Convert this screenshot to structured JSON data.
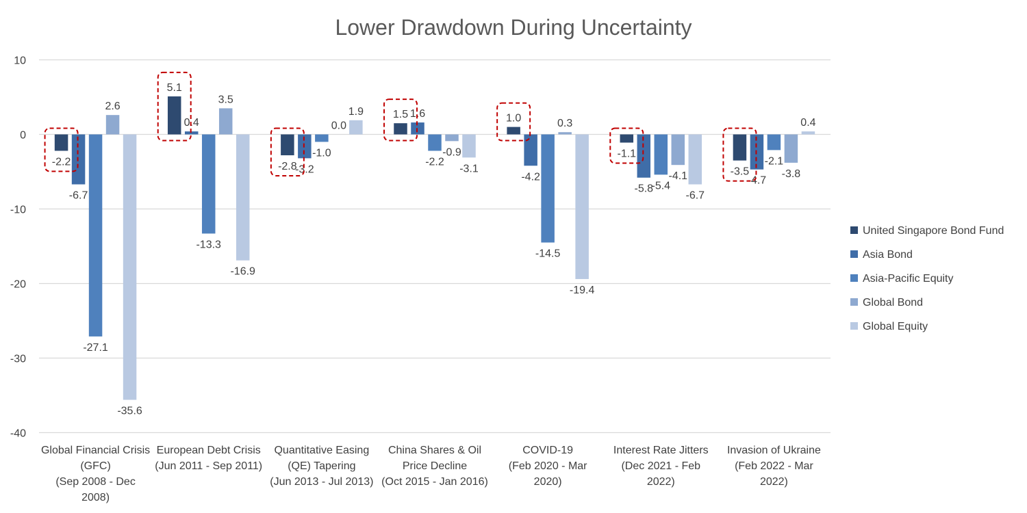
{
  "chart_data": {
    "type": "bar",
    "title": "Lower Drawdown During Uncertainty",
    "xlabel": "",
    "ylabel": "",
    "ylim": [
      -40,
      10
    ],
    "yticks": [
      10,
      0,
      -10,
      -20,
      -30,
      -40
    ],
    "grid": true,
    "legend_position": "right",
    "categories": [
      [
        "Global Financial Crisis",
        "(GFC)",
        "(Sep 2008 - Dec",
        "2008)"
      ],
      [
        "European Debt Crisis",
        "(Jun 2011 - Sep 2011)"
      ],
      [
        "Quantitative Easing",
        "(QE) Tapering",
        "(Jun 2013 - Jul 2013)"
      ],
      [
        "China Shares & Oil",
        "Price Decline",
        "(Oct 2015 - Jan 2016)"
      ],
      [
        "COVID-19",
        "(Feb 2020 - Mar",
        "2020)"
      ],
      [
        "Interest Rate Jitters",
        "(Dec 2021 - Feb",
        "2022)"
      ],
      [
        "Invasion of Ukraine",
        "(Feb 2022 - Mar",
        "2022)"
      ]
    ],
    "series": [
      {
        "name": "United Singapore Bond Fund",
        "color": "#2E4A70",
        "highlighted": true,
        "values": [
          -2.2,
          5.1,
          -2.8,
          1.5,
          1.0,
          -1.1,
          -3.5
        ]
      },
      {
        "name": "Asia Bond",
        "color": "#3F6DA8",
        "values": [
          -6.7,
          0.4,
          -3.2,
          1.6,
          -4.2,
          -5.8,
          -4.7
        ]
      },
      {
        "name": "Asia-Pacific Equity",
        "color": "#4F81BD",
        "values": [
          -27.1,
          -13.3,
          -1.0,
          -2.2,
          -14.5,
          -5.4,
          -2.1
        ]
      },
      {
        "name": "Global Bond",
        "color": "#8EA9D0",
        "values": [
          2.6,
          3.5,
          0.0,
          -0.9,
          0.3,
          -4.1,
          -3.8
        ]
      },
      {
        "name": "Global Equity",
        "color": "#B9C9E2",
        "values": [
          -35.6,
          -16.9,
          1.9,
          -3.1,
          -19.4,
          -6.7,
          0.4
        ]
      }
    ],
    "highlight_color": "#C00000"
  }
}
